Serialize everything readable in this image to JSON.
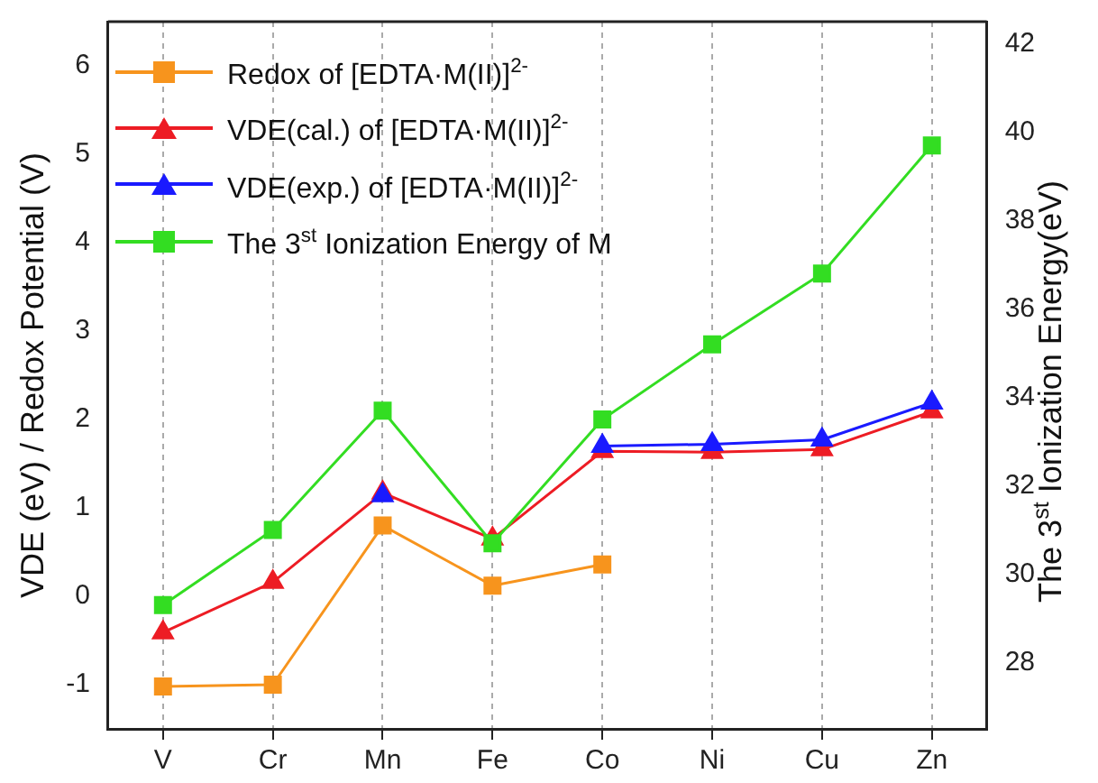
{
  "chart_data": {
    "type": "line",
    "ylabel": "VDE (eV) / Redox Potential (V)",
    "y2label": "The 3$^{st}$ Ionization Energy(eV)",
    "categories": [
      "V",
      "Cr",
      "Mn",
      "Fe",
      "Co",
      "Ni",
      "Cu",
      "Zn"
    ],
    "series": [
      {
        "name": "Redox of [EDTA·M(II)]$^{2-}$",
        "color": "#f7941d",
        "marker": "square",
        "values": [
          -1.02,
          -1.0,
          0.8,
          0.12,
          0.36,
          null,
          null,
          null
        ]
      },
      {
        "name": "VDE(cal.) of [EDTA·M(II)]$^{2-}$",
        "color": "#ed1c24",
        "marker": "triangle",
        "values": [
          -0.41,
          0.16,
          1.17,
          0.65,
          1.64,
          1.63,
          1.66,
          2.09
        ]
      },
      {
        "name": "VDE(exp.) of [EDTA·M(II)]$^{2-}$",
        "color": "#1a1aff",
        "marker": "triangle",
        "values": [
          null,
          null,
          1.14,
          null,
          1.7,
          1.72,
          1.77,
          2.19
        ]
      },
      {
        "name": "The 3$^{st}$ Ionization Energy of M",
        "color": "#33dd22",
        "marker": "square",
        "axis": "y2",
        "values": [
          29.3,
          31.0,
          33.7,
          30.7,
          33.5,
          35.2,
          36.8,
          39.7
        ]
      }
    ],
    "ylim": [
      -1.5,
      6.5
    ],
    "yticks": [
      -1,
      0,
      1,
      2,
      3,
      4,
      5,
      6
    ],
    "y2lim": [
      26.5,
      42.5
    ],
    "y2ticks": [
      28,
      30,
      32,
      34,
      36,
      38,
      40,
      42
    ],
    "grid": "x",
    "legend": "top left"
  }
}
